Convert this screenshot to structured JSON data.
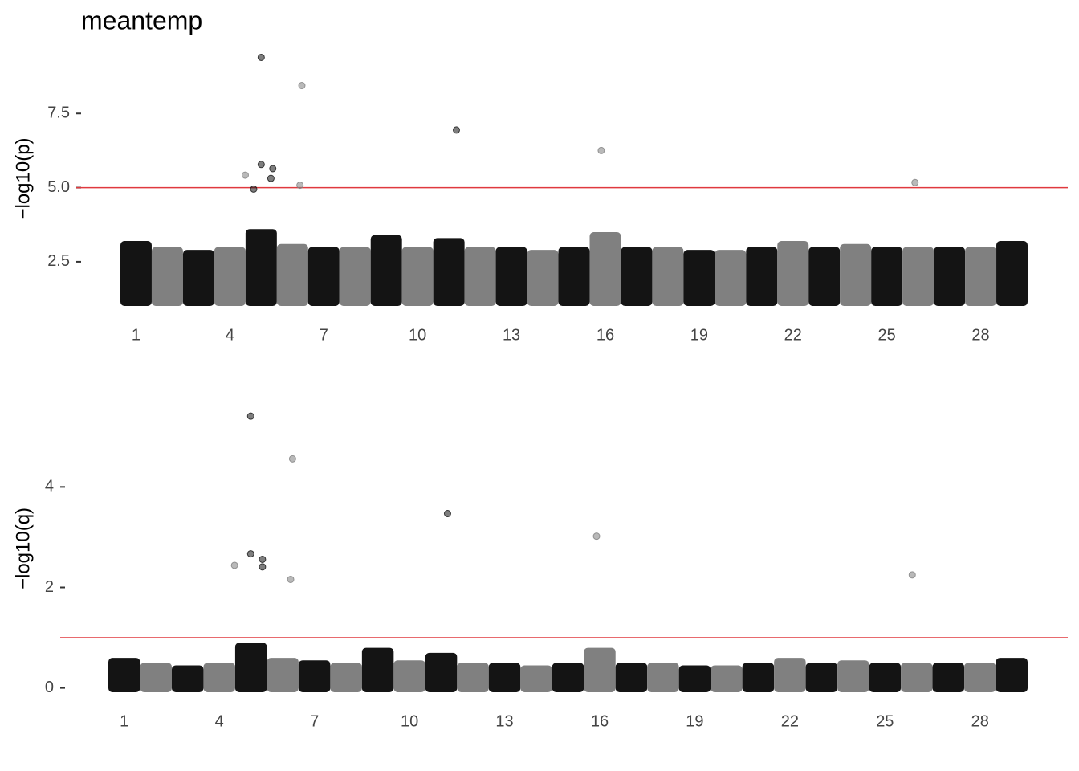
{
  "chart_data": [
    {
      "type": "scatter",
      "title": "meantemp",
      "ylabel": "−log10(p)",
      "xlim": [
        0.5,
        29.5
      ],
      "xticks": [
        1,
        4,
        7,
        10,
        13,
        16,
        19,
        22,
        25,
        28
      ],
      "ylim": [
        0.9,
        9.7
      ],
      "yticks": [
        2.5,
        {
          "value": 5,
          "label": "5.0"
        },
        7.5
      ],
      "hline": 5,
      "hline_color": "#e0393e",
      "colors": [
        "#141414",
        "#808080"
      ],
      "band_tops": [
        3.2,
        3.0,
        2.9,
        3.0,
        3.6,
        3.1,
        3.0,
        3.0,
        3.4,
        3.0,
        3.3,
        3.0,
        3.0,
        2.9,
        3.0,
        3.5,
        3.0,
        3.0,
        2.9,
        2.9,
        3.0,
        3.2,
        3.0,
        3.1,
        3.0,
        3.0,
        3.0,
        3.0,
        3.2
      ],
      "x": [
        5.0,
        6.3,
        11.24,
        15.87,
        5.0,
        5.37,
        5.31,
        4.49,
        6.24,
        25.9,
        4.76
      ],
      "values": [
        9.39,
        8.44,
        6.94,
        6.25,
        5.78,
        5.64,
        5.31,
        5.42,
        5.08,
        5.17,
        4.95
      ]
    },
    {
      "type": "scatter",
      "ylabel": "−log10(q)",
      "xlim": [
        0.5,
        29.5
      ],
      "xticks": [
        1,
        4,
        7,
        10,
        13,
        16,
        19,
        22,
        25,
        28
      ],
      "ylim": [
        -0.15,
        5.7
      ],
      "yticks": [
        0,
        2,
        4
      ],
      "hline": 1,
      "hline_color": "#e0393e",
      "colors": [
        "#141414",
        "#808080"
      ],
      "band_tops": [
        0.6,
        0.5,
        0.45,
        0.5,
        0.9,
        0.6,
        0.55,
        0.5,
        0.8,
        0.55,
        0.7,
        0.5,
        0.5,
        0.45,
        0.5,
        0.8,
        0.5,
        0.5,
        0.45,
        0.45,
        0.5,
        0.6,
        0.5,
        0.55,
        0.5,
        0.5,
        0.5,
        0.5,
        0.6
      ],
      "x": [
        4.99,
        6.31,
        11.2,
        15.9,
        4.99,
        5.36,
        5.36,
        4.48,
        25.86,
        6.25
      ],
      "values": [
        5.41,
        4.56,
        3.47,
        3.02,
        2.67,
        2.56,
        2.41,
        2.44,
        2.25,
        2.16
      ]
    }
  ]
}
